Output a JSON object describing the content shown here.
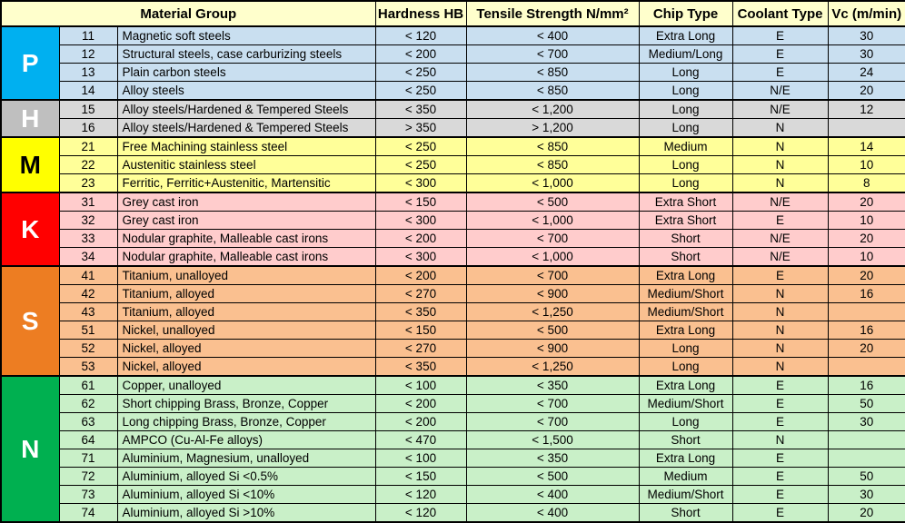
{
  "table": {
    "headers": {
      "material_group": "Material Group",
      "hardness": "Hardness HB",
      "tensile": "Tensile Strength N/mm²",
      "chip": "Chip Type",
      "coolant": "Coolant Type",
      "vc": "Vc (m/min)"
    },
    "colors": {
      "header_bg": "#FFFFCC",
      "border": "#000000",
      "text": "#000000"
    },
    "groups": [
      {
        "letter": "P",
        "block_color": "#00B0F0",
        "letter_color": "#FFFFFF",
        "row_bg": "#C9DFF0",
        "rows": [
          {
            "code": "11",
            "material": "Magnetic soft steels",
            "hardness": "< 120",
            "tensile": "< 400",
            "chip": "Extra Long",
            "coolant": "E",
            "vc": "30"
          },
          {
            "code": "12",
            "material": "Structural steels, case carburizing steels",
            "hardness": "< 200",
            "tensile": "< 700",
            "chip": "Medium/Long",
            "coolant": "E",
            "vc": "30"
          },
          {
            "code": "13",
            "material": "Plain carbon steels",
            "hardness": "< 250",
            "tensile": "< 850",
            "chip": "Long",
            "coolant": "E",
            "vc": "24"
          },
          {
            "code": "14",
            "material": "Alloy steels",
            "hardness": "< 250",
            "tensile": "< 850",
            "chip": "Long",
            "coolant": "N/E",
            "vc": "20"
          }
        ]
      },
      {
        "letter": "H",
        "block_color": "#BFBFBF",
        "letter_color": "#FFFFFF",
        "row_bg": "#D9D9D9",
        "rows": [
          {
            "code": "15",
            "material": "Alloy steels/Hardened & Tempered Steels",
            "hardness": "< 350",
            "tensile": "< 1,200",
            "chip": "Long",
            "coolant": "N/E",
            "vc": "12"
          },
          {
            "code": "16",
            "material": "Alloy steels/Hardened & Tempered Steels",
            "hardness": "> 350",
            "tensile": "> 1,200",
            "chip": "Long",
            "coolant": "N",
            "vc": ""
          }
        ]
      },
      {
        "letter": "M",
        "block_color": "#FFFF00",
        "letter_color": "#000000",
        "row_bg": "#FFFF99",
        "rows": [
          {
            "code": "21",
            "material": "Free Machining stainless steel",
            "hardness": "< 250",
            "tensile": "< 850",
            "chip": "Medium",
            "coolant": "N",
            "vc": "14"
          },
          {
            "code": "22",
            "material": "Austenitic stainless steel",
            "hardness": "< 250",
            "tensile": "< 850",
            "chip": "Long",
            "coolant": "N",
            "vc": "10"
          },
          {
            "code": "23",
            "material": "Ferritic, Ferritic+Austenitic, Martensitic",
            "hardness": "< 300",
            "tensile": "< 1,000",
            "chip": "Long",
            "coolant": "N",
            "vc": "8"
          }
        ]
      },
      {
        "letter": "K",
        "block_color": "#FF0000",
        "letter_color": "#FFFFFF",
        "row_bg": "#FFCCCC",
        "rows": [
          {
            "code": "31",
            "material": "Grey cast iron",
            "hardness": "< 150",
            "tensile": "< 500",
            "chip": "Extra Short",
            "coolant": "N/E",
            "vc": "20"
          },
          {
            "code": "32",
            "material": "Grey cast iron",
            "hardness": "< 300",
            "tensile": "< 1,000",
            "chip": "Extra Short",
            "coolant": "E",
            "vc": "10"
          },
          {
            "code": "33",
            "material": "Nodular graphite, Malleable cast irons",
            "hardness": "< 200",
            "tensile": "< 700",
            "chip": "Short",
            "coolant": "N/E",
            "vc": "20"
          },
          {
            "code": "34",
            "material": "Nodular graphite, Malleable cast irons",
            "hardness": "< 300",
            "tensile": "< 1,000",
            "chip": "Short",
            "coolant": "N/E",
            "vc": "10"
          }
        ]
      },
      {
        "letter": "S",
        "block_color": "#ED7D22",
        "letter_color": "#FFFFFF",
        "row_bg": "#FAC090",
        "rows": [
          {
            "code": "41",
            "material": "Titanium, unalloyed",
            "hardness": "< 200",
            "tensile": "< 700",
            "chip": "Extra Long",
            "coolant": "E",
            "vc": "20"
          },
          {
            "code": "42",
            "material": "Titanium, alloyed",
            "hardness": "< 270",
            "tensile": "< 900",
            "chip": "Medium/Short",
            "coolant": "N",
            "vc": "16"
          },
          {
            "code": "43",
            "material": "Titanium, alloyed",
            "hardness": "< 350",
            "tensile": "< 1,250",
            "chip": "Medium/Short",
            "coolant": "N",
            "vc": ""
          },
          {
            "code": "51",
            "material": "Nickel, unalloyed",
            "hardness": "< 150",
            "tensile": "< 500",
            "chip": "Extra Long",
            "coolant": "N",
            "vc": "16"
          },
          {
            "code": "52",
            "material": "Nickel, alloyed",
            "hardness": "< 270",
            "tensile": "< 900",
            "chip": "Long",
            "coolant": "N",
            "vc": "20"
          },
          {
            "code": "53",
            "material": "Nickel, alloyed",
            "hardness": "< 350",
            "tensile": "< 1,250",
            "chip": "Long",
            "coolant": "N",
            "vc": ""
          }
        ]
      },
      {
        "letter": "N",
        "block_color": "#00B050",
        "letter_color": "#FFFFFF",
        "row_bg": "#C9F0C8",
        "rows": [
          {
            "code": "61",
            "material": "Copper, unalloyed",
            "hardness": "< 100",
            "tensile": "< 350",
            "chip": "Extra Long",
            "coolant": "E",
            "vc": "16"
          },
          {
            "code": "62",
            "material": "Short chipping Brass, Bronze, Copper",
            "hardness": "< 200",
            "tensile": "< 700",
            "chip": "Medium/Short",
            "coolant": "E",
            "vc": "50"
          },
          {
            "code": "63",
            "material": "Long chipping Brass, Bronze, Copper",
            "hardness": "< 200",
            "tensile": "< 700",
            "chip": "Long",
            "coolant": "E",
            "vc": "30"
          },
          {
            "code": "64",
            "material": "AMPCO (Cu-Al-Fe alloys)",
            "hardness": "< 470",
            "tensile": "< 1,500",
            "chip": "Short",
            "coolant": "N",
            "vc": ""
          },
          {
            "code": "71",
            "material": "Aluminium, Magnesium, unalloyed",
            "hardness": "< 100",
            "tensile": "< 350",
            "chip": "Extra Long",
            "coolant": "E",
            "vc": ""
          },
          {
            "code": "72",
            "material": "Aluminium, alloyed Si <0.5%",
            "hardness": "< 150",
            "tensile": "< 500",
            "chip": "Medium",
            "coolant": "E",
            "vc": "50"
          },
          {
            "code": "73",
            "material": "Aluminium, alloyed Si <10%",
            "hardness": "< 120",
            "tensile": "< 400",
            "chip": "Medium/Short",
            "coolant": "E",
            "vc": "30"
          },
          {
            "code": "74",
            "material": "Aluminium, alloyed Si >10%",
            "hardness": "< 120",
            "tensile": "< 400",
            "chip": "Short",
            "coolant": "E",
            "vc": "20"
          }
        ]
      }
    ]
  }
}
